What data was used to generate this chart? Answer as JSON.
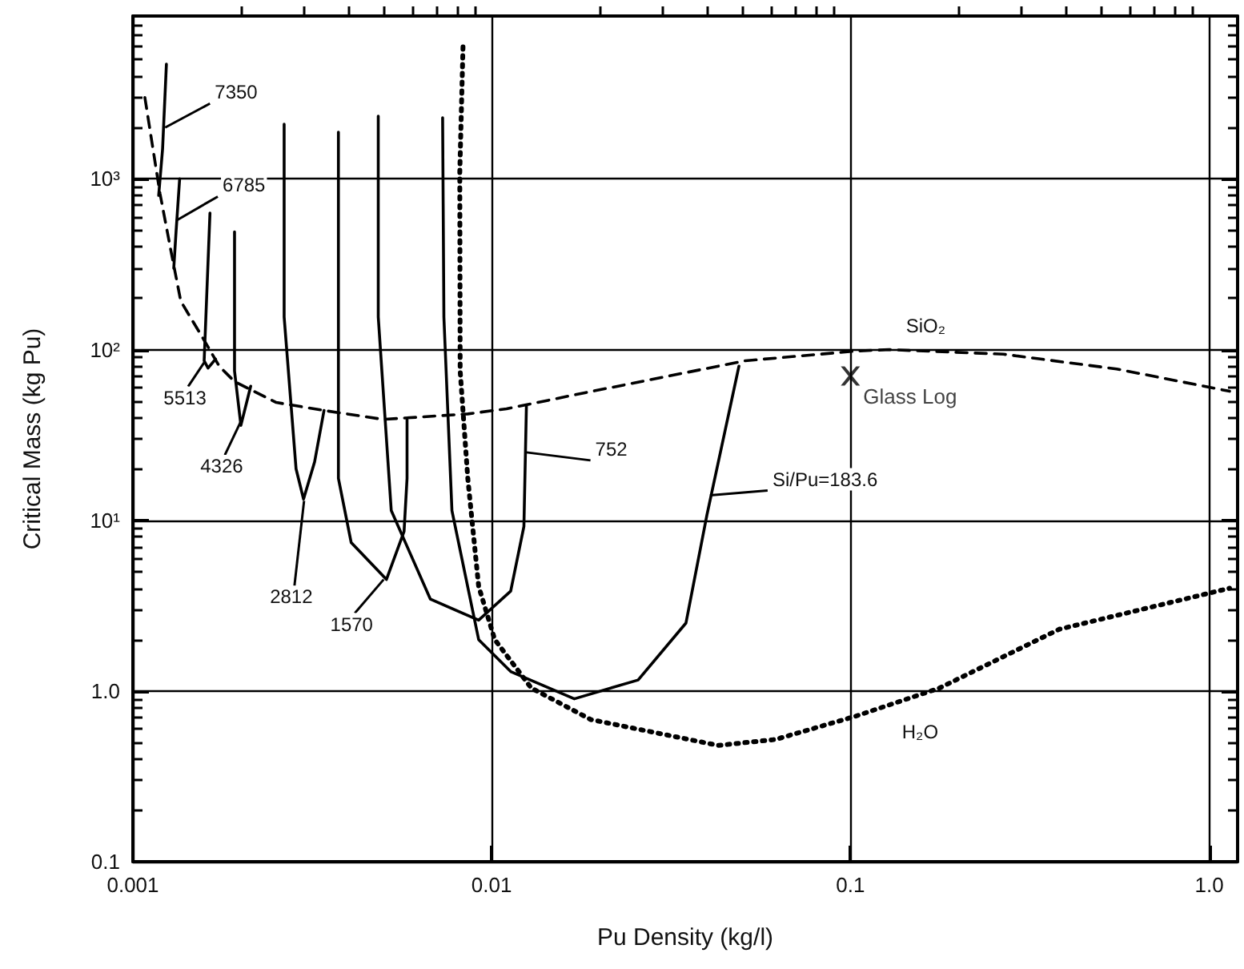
{
  "chart_data": {
    "type": "line",
    "xlabel": "Pu Density (kg/l)",
    "ylabel": "Critical Mass (kg Pu)",
    "log": "xy",
    "grid": true,
    "legend": false,
    "marker": "none",
    "xlim": [
      0.001,
      1.2
    ],
    "xticks": [
      0.001,
      0.01,
      0.1,
      {
        "value": 1,
        "label": "1.0"
      }
    ],
    "ylim": [
      0.1,
      9000
    ],
    "yticks": [
      0.1,
      {
        "value": 1,
        "label": "1.0"
      },
      {
        "value": 10,
        "label": "10¹"
      },
      {
        "value": 100,
        "label": "10²"
      },
      {
        "value": 1000,
        "label": "10³"
      }
    ],
    "series": [
      {
        "color": "#000000",
        "line_style": "dashed",
        "x": [
          0.00108,
          0.00119,
          0.00128,
          0.00136,
          0.00157,
          0.00174,
          0.00192,
          0.00251,
          0.00341,
          0.00499,
          0.00858,
          0.011,
          0.0183,
          0.0509,
          0.103,
          0.128,
          0.267,
          0.552,
          1.14
        ],
        "values": [
          3000,
          822,
          368,
          192,
          116,
          80,
          65,
          49,
          44,
          39,
          42,
          45,
          56,
          86,
          98,
          100,
          94,
          77,
          57
        ]
      },
      {
        "color": "#000000",
        "line_style": "dotted",
        "x": [
          0.00832,
          0.00815,
          0.00817,
          0.00858,
          0.0092,
          0.0102,
          0.0129,
          0.0189,
          0.0428,
          0.0618,
          0.103,
          0.177,
          0.382,
          1.14
        ],
        "values": [
          5940,
          1090,
          75,
          17.6,
          4.1,
          2.0,
          1.04,
          0.68,
          0.48,
          0.52,
          0.71,
          1.04,
          2.3,
          4.0
        ]
      },
      {
        "color": "#000000",
        "line_style": "solid",
        "x": [
          0.00124,
          0.00121,
          0.00118
        ],
        "values": [
          4700,
          1500,
          800
        ]
      },
      {
        "color": "#000000",
        "line_style": "solid",
        "x": [
          0.00135,
          0.00132,
          0.0013
        ],
        "values": [
          1000,
          500,
          300
        ]
      },
      {
        "color": "#000000",
        "line_style": "solid",
        "x": [
          0.00164,
          0.00158,
          0.00162,
          0.0017
        ],
        "values": [
          630,
          86,
          78,
          88
        ]
      },
      {
        "color": "#000000",
        "line_style": "solid",
        "x": [
          0.00192,
          0.00192,
          0.002,
          0.00213
        ],
        "values": [
          489,
          75,
          36,
          61
        ]
      },
      {
        "color": "#000000",
        "line_style": "solid",
        "x": [
          0.00264,
          0.00264,
          0.00285,
          0.00299,
          0.00321,
          0.00341
        ],
        "values": [
          2090,
          155,
          20,
          13.3,
          22,
          44
        ]
      },
      {
        "color": "#000000",
        "line_style": "solid",
        "x": [
          0.00374,
          0.00374,
          0.00406,
          0.00509,
          0.0057,
          0.00581,
          0.00581
        ],
        "values": [
          1880,
          17.6,
          7.4,
          4.5,
          8.6,
          17.6,
          39
        ]
      },
      {
        "color": "#000000",
        "line_style": "solid",
        "x": [
          0.00483,
          0.00483,
          0.00525,
          0.00675,
          0.0092,
          0.0113,
          0.0123,
          0.0125
        ],
        "values": [
          2330,
          155,
          11.4,
          3.45,
          2.6,
          3.85,
          9.2,
          47
        ]
      },
      {
        "color": "#000000",
        "line_style": "solid",
        "x": [
          0.0073,
          0.00736,
          0.00775,
          0.0092,
          0.0113,
          0.017,
          0.0256,
          0.0348,
          0.0398,
          0.0489
        ],
        "values": [
          2280,
          155,
          11.4,
          2.0,
          1.3,
          0.9,
          1.16,
          2.5,
          10.7,
          80
        ]
      },
      {
        "type": "scatter",
        "name": "Glass Log",
        "color": "#000000",
        "marker": "cross",
        "x": [
          0.1
        ],
        "values": [
          70
        ]
      }
    ],
    "annotations": [
      {
        "text": "7350",
        "x": 0.00123,
        "y": 2000
      },
      {
        "text": "6785",
        "x": 0.00132,
        "y": 570
      },
      {
        "text": "5513",
        "x": 0.00158,
        "y": 84
      },
      {
        "text": "4326",
        "x": 0.002,
        "y": 38
      },
      {
        "text": "2812",
        "x": 0.003,
        "y": 13
      },
      {
        "text": "1570",
        "x": 0.005,
        "y": 4.5
      },
      {
        "text": "752",
        "x": 0.0125,
        "y": 25
      },
      {
        "text": "Si/Pu=183.6",
        "x": 0.0406,
        "y": 14
      },
      {
        "text": "SiO₂",
        "x": 0.128,
        "y": 100
      },
      {
        "text": "H₂O",
        "x": 0.13,
        "y": 0.8
      }
    ]
  }
}
